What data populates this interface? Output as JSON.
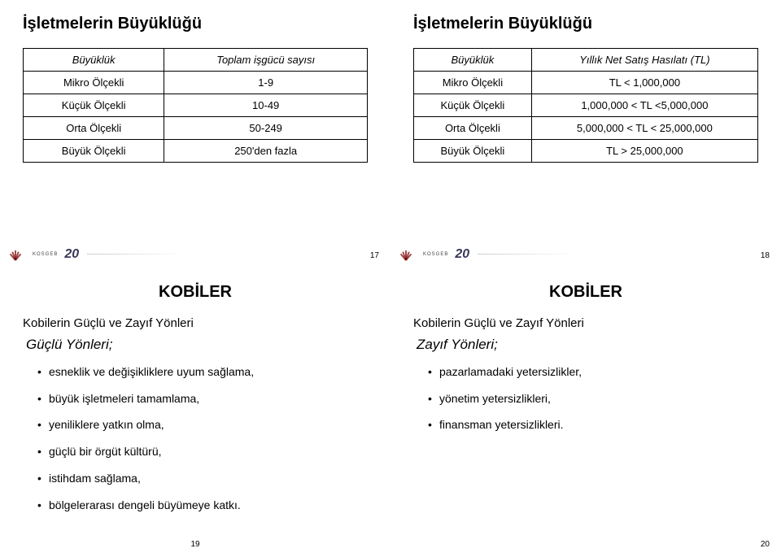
{
  "colors": {
    "text": "#000000",
    "background": "#ffffff",
    "logo_mark": "#7a0000",
    "logo_twenty": "#3a3a5a",
    "table_border": "#000000"
  },
  "typography": {
    "family": "Arial",
    "title_size_pt": 20,
    "body_size_pt": 14,
    "pagenum_size_pt": 10
  },
  "logo": {
    "brand_small": "KOSGEB",
    "twenty": "20"
  },
  "slide17": {
    "title": "İşletmelerin Büyüklüğü",
    "table": {
      "columns": [
        "Büyüklük",
        "Toplam işgücü sayısı"
      ],
      "rows": [
        [
          "Mikro Ölçekli",
          "1-9"
        ],
        [
          "Küçük Ölçekli",
          "10-49"
        ],
        [
          "Orta Ölçekli",
          "50-249"
        ],
        [
          "Büyük Ölçekli",
          "250'den fazla"
        ]
      ]
    },
    "page": "17"
  },
  "slide18": {
    "title": "İşletmelerin Büyüklüğü",
    "table": {
      "columns": [
        "Büyüklük",
        "Yıllık Net Satış Hasılatı (TL)"
      ],
      "rows": [
        [
          "Mikro Ölçekli",
          "TL < 1,000,000"
        ],
        [
          "Küçük Ölçekli",
          "1,000,000 < TL <5,000,000"
        ],
        [
          "Orta Ölçekli",
          "5,000,000 < TL < 25,000,000"
        ],
        [
          "Büyük Ölçekli",
          "TL > 25,000,000"
        ]
      ]
    },
    "page": "18"
  },
  "slide19": {
    "title": "KOBİLER",
    "subhead": "Kobilerin Güçlü ve Zayıf Yönleri",
    "lead": "Güçlü Yönleri;",
    "bullets": [
      "esneklik ve değişikliklere uyum sağlama,",
      "büyük işletmeleri tamamlama,",
      "yeniliklere yatkın olma,",
      "güçlü bir örgüt kültürü,",
      "istihdam sağlama,",
      "bölgelerarası dengeli büyümeye katkı."
    ],
    "page": "19"
  },
  "slide20": {
    "title": "KOBİLER",
    "subhead": "Kobilerin Güçlü ve Zayıf Yönleri",
    "lead": "Zayıf Yönleri;",
    "bullets": [
      "pazarlamadaki yetersizlikler,",
      "yönetim yetersizlikleri,",
      "finansman yetersizlikleri."
    ],
    "page": "20"
  }
}
